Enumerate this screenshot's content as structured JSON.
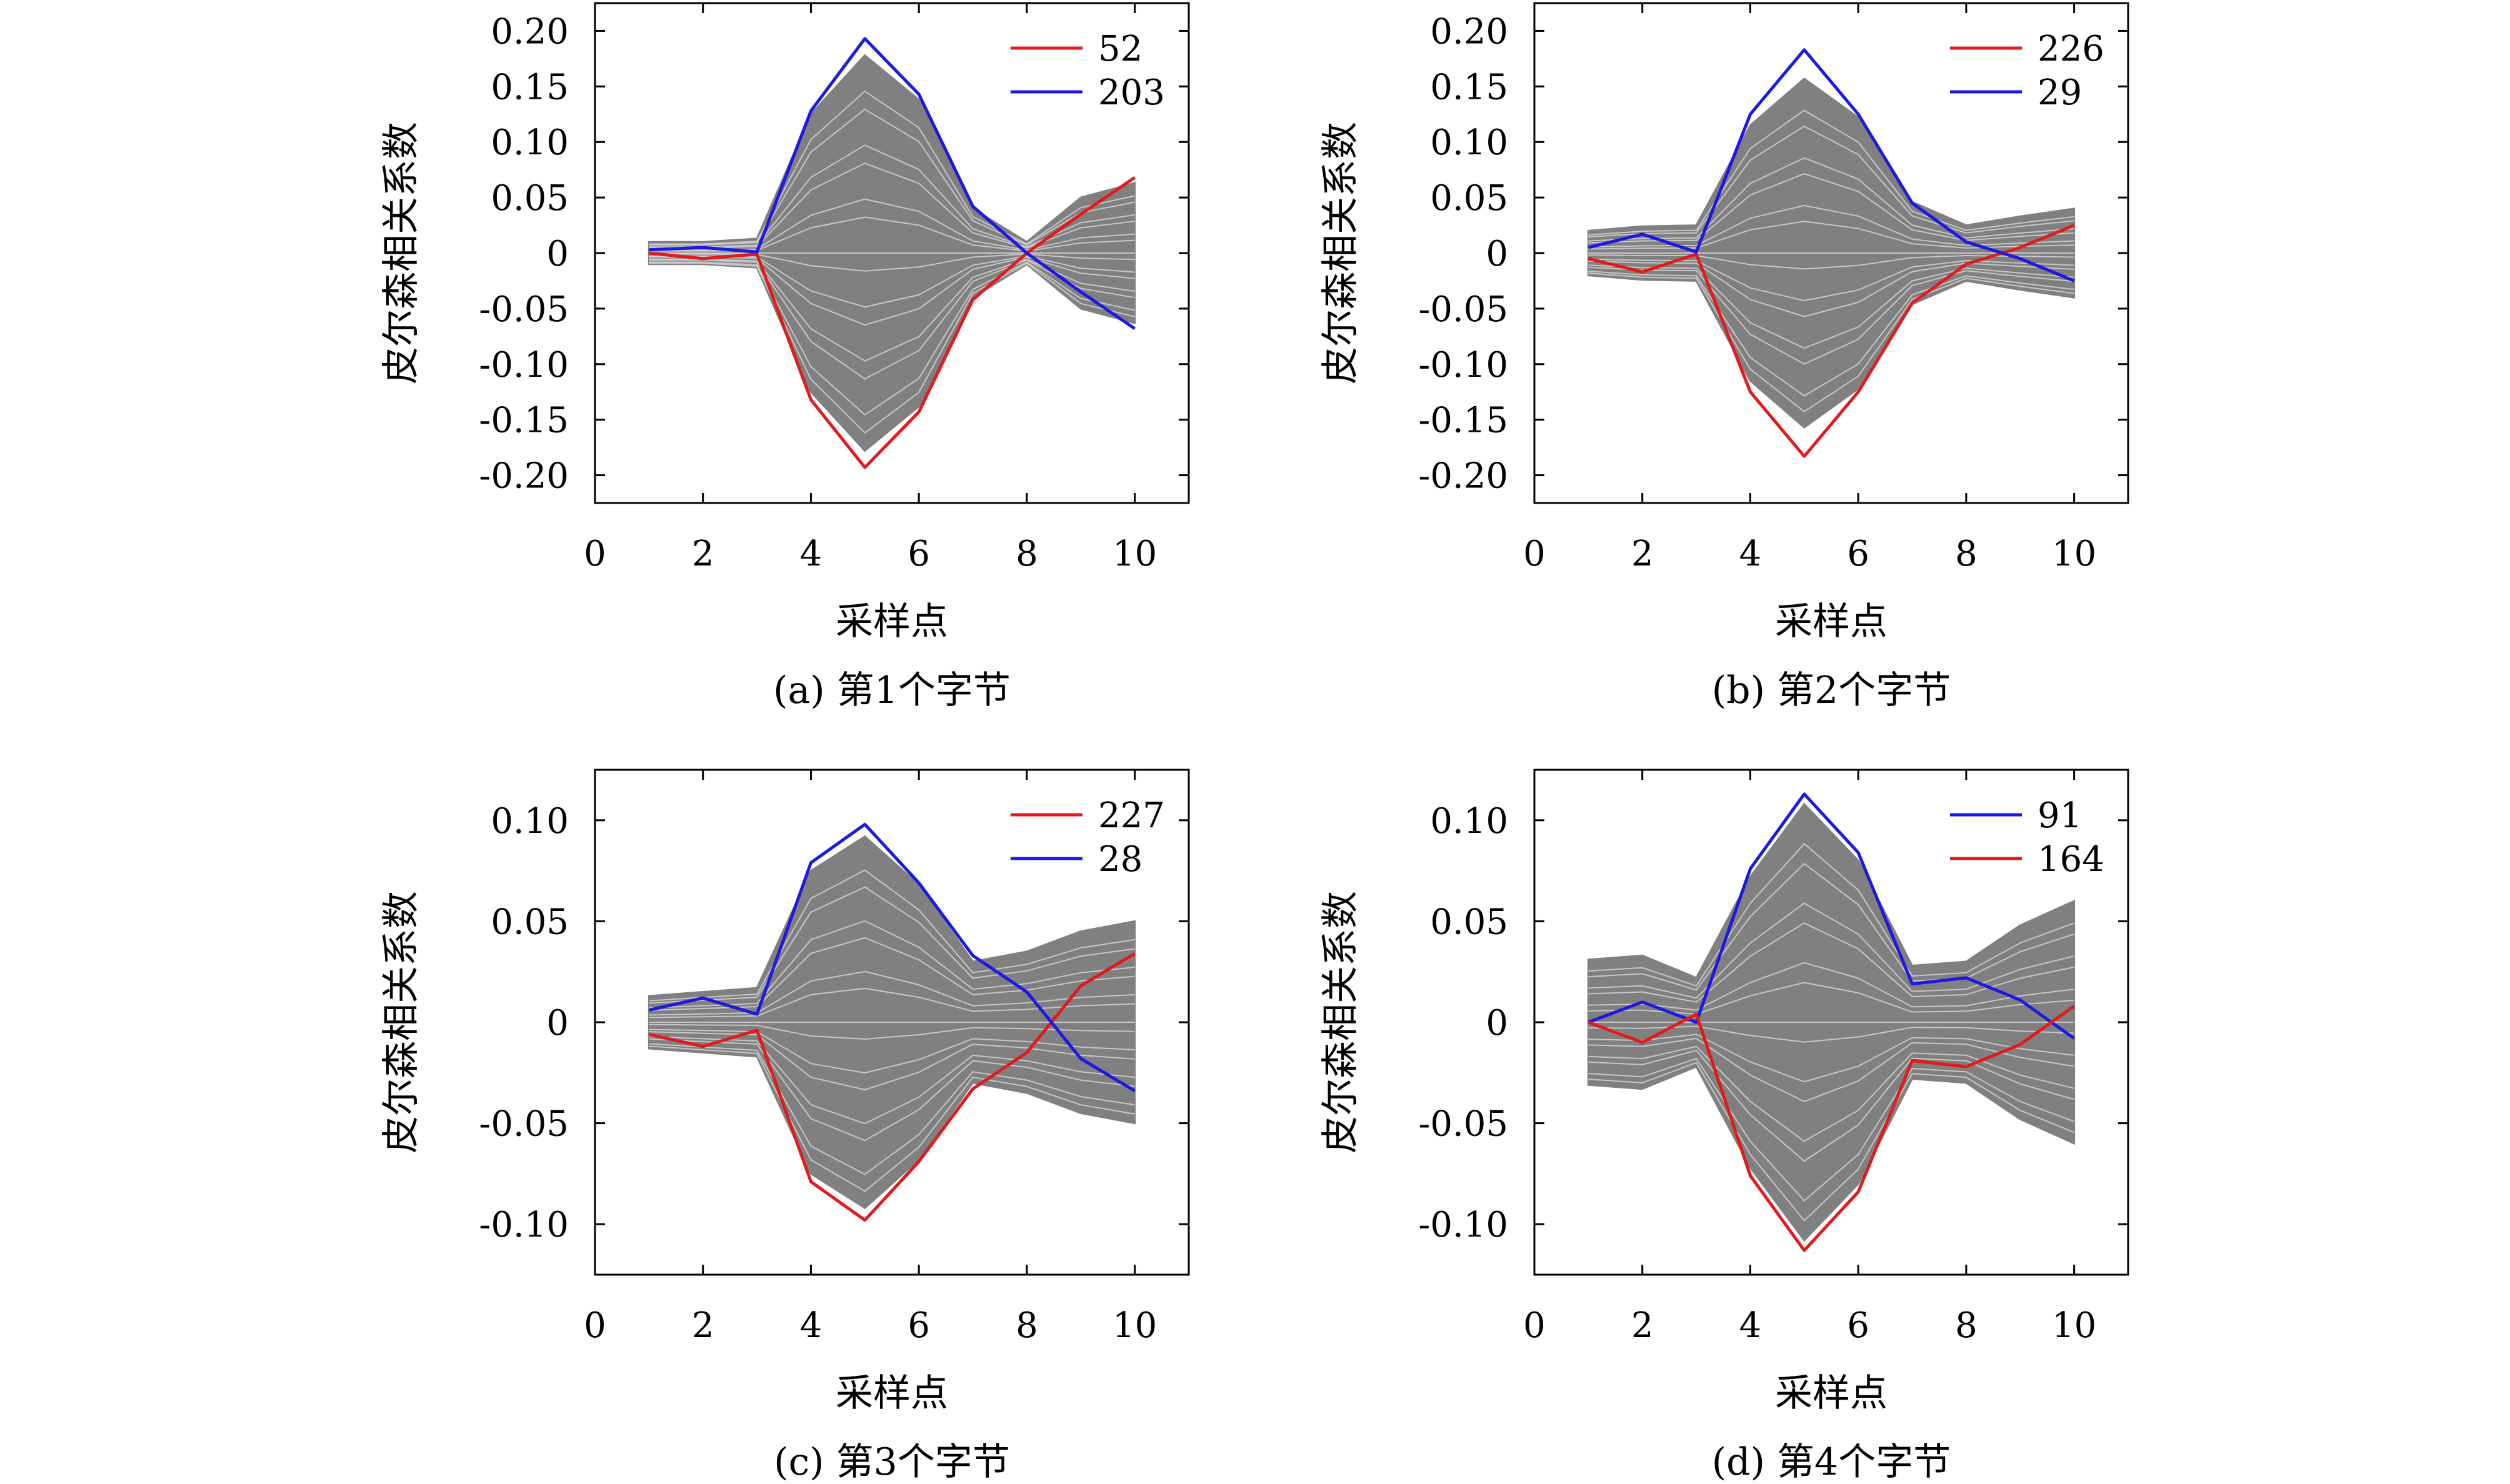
{
  "chart_data": [
    {
      "type": "line",
      "caption": "(a) 第1个字节",
      "xlabel": "采样点",
      "ylabel": "皮尔森相关系数",
      "xlim": [
        0,
        11
      ],
      "ylim": [
        -0.225,
        0.225
      ],
      "xticks": [
        0,
        2,
        4,
        6,
        8,
        10
      ],
      "xtick_labels": [
        "0",
        "2",
        "4",
        "6",
        "8",
        "10"
      ],
      "yticks": [
        -0.2,
        -0.15,
        -0.1,
        -0.05,
        0,
        0.05,
        0.1,
        0.15,
        0.2
      ],
      "ytick_labels": [
        "-0.20",
        "-0.15",
        "-0.10",
        "-0.05",
        "0",
        "0.05",
        "0.10",
        "0.15",
        "0.20"
      ],
      "x": [
        1,
        2,
        3,
        4,
        5,
        6,
        7,
        8,
        9,
        10
      ],
      "background_envelope": {
        "color": "#808080",
        "upper": [
          0.01,
          0.01,
          0.013,
          0.125,
          0.178,
          0.138,
          0.04,
          0.01,
          0.05,
          0.063
        ],
        "lower": [
          -0.01,
          -0.01,
          -0.013,
          -0.125,
          -0.178,
          -0.138,
          -0.04,
          -0.01,
          -0.05,
          -0.063
        ]
      },
      "series": [
        {
          "name": "52",
          "color": "#e31a1c",
          "values": [
            0.0,
            -0.005,
            -0.001,
            -0.132,
            -0.193,
            -0.143,
            -0.042,
            0.0,
            0.035,
            0.068
          ]
        },
        {
          "name": "203",
          "color": "#1a1ae3",
          "values": [
            0.003,
            0.005,
            0.001,
            0.128,
            0.193,
            0.143,
            0.042,
            0.0,
            -0.035,
            -0.068
          ]
        }
      ],
      "legend_position": "top-right"
    },
    {
      "type": "line",
      "caption": "(b) 第2个字节",
      "xlabel": "采样点",
      "ylabel": "皮尔森相关系数",
      "xlim": [
        0,
        11
      ],
      "ylim": [
        -0.225,
        0.225
      ],
      "xticks": [
        0,
        2,
        4,
        6,
        8,
        10
      ],
      "xtick_labels": [
        "0",
        "2",
        "4",
        "6",
        "8",
        "10"
      ],
      "yticks": [
        -0.2,
        -0.15,
        -0.1,
        -0.05,
        0,
        0.05,
        0.1,
        0.15,
        0.2
      ],
      "ytick_labels": [
        "-0.20",
        "-0.15",
        "-0.10",
        "-0.05",
        "0",
        "0.05",
        "0.10",
        "0.15",
        "0.20"
      ],
      "x": [
        1,
        2,
        3,
        4,
        5,
        6,
        7,
        8,
        9,
        10
      ],
      "background_envelope": {
        "color": "#808080",
        "upper": [
          0.02,
          0.024,
          0.025,
          0.115,
          0.157,
          0.122,
          0.046,
          0.025,
          0.033,
          0.04
        ],
        "lower": [
          -0.02,
          -0.024,
          -0.025,
          -0.115,
          -0.157,
          -0.122,
          -0.046,
          -0.025,
          -0.033,
          -0.04
        ]
      },
      "series": [
        {
          "name": "226",
          "color": "#e31a1c",
          "values": [
            -0.005,
            -0.017,
            -0.001,
            -0.125,
            -0.183,
            -0.125,
            -0.045,
            -0.01,
            0.005,
            0.025
          ]
        },
        {
          "name": "29",
          "color": "#1a1ae3",
          "values": [
            0.005,
            0.017,
            0.001,
            0.125,
            0.183,
            0.125,
            0.045,
            0.01,
            -0.005,
            -0.025
          ]
        }
      ],
      "legend_position": "top-right"
    },
    {
      "type": "line",
      "caption": "(c) 第3个字节",
      "xlabel": "采样点",
      "ylabel": "皮尔森相关系数",
      "xlim": [
        0,
        11
      ],
      "ylim": [
        -0.125,
        0.125
      ],
      "xticks": [
        0,
        2,
        4,
        6,
        8,
        10
      ],
      "xtick_labels": [
        "0",
        "2",
        "4",
        "6",
        "8",
        "10"
      ],
      "yticks": [
        -0.1,
        -0.05,
        0,
        0.05,
        0.1
      ],
      "ytick_labels": [
        "-0.10",
        "-0.05",
        "0",
        "0.05",
        "0.10"
      ],
      "x": [
        1,
        2,
        3,
        4,
        5,
        6,
        7,
        8,
        9,
        10
      ],
      "background_envelope": {
        "color": "#808080",
        "upper": [
          0.013,
          0.015,
          0.017,
          0.075,
          0.092,
          0.068,
          0.03,
          0.035,
          0.045,
          0.05
        ],
        "lower": [
          -0.013,
          -0.015,
          -0.017,
          -0.075,
          -0.092,
          -0.068,
          -0.03,
          -0.035,
          -0.045,
          -0.05
        ]
      },
      "series": [
        {
          "name": "227",
          "color": "#e31a1c",
          "values": [
            -0.006,
            -0.012,
            -0.004,
            -0.079,
            -0.098,
            -0.069,
            -0.033,
            -0.015,
            0.018,
            0.034
          ]
        },
        {
          "name": "28",
          "color": "#1a1ae3",
          "values": [
            0.006,
            0.012,
            0.004,
            0.079,
            0.098,
            0.069,
            0.033,
            0.015,
            -0.018,
            -0.034
          ]
        }
      ],
      "legend_position": "top-right"
    },
    {
      "type": "line",
      "caption": "(d) 第4个字节",
      "xlabel": "采样点",
      "ylabel": "皮尔森相关系数",
      "xlim": [
        0,
        11
      ],
      "ylim": [
        -0.125,
        0.125
      ],
      "xticks": [
        0,
        2,
        4,
        6,
        8,
        10
      ],
      "xtick_labels": [
        "0",
        "2",
        "4",
        "6",
        "8",
        "10"
      ],
      "yticks": [
        -0.1,
        -0.05,
        0,
        0.05,
        0.1
      ],
      "ytick_labels": [
        "-0.10",
        "-0.05",
        "0",
        "0.05",
        "0.10"
      ],
      "x": [
        1,
        2,
        3,
        4,
        5,
        6,
        7,
        8,
        9,
        10
      ],
      "background_envelope": {
        "color": "#808080",
        "upper": [
          0.031,
          0.033,
          0.022,
          0.072,
          0.108,
          0.08,
          0.028,
          0.03,
          0.048,
          0.06
        ],
        "lower": [
          -0.031,
          -0.033,
          -0.022,
          -0.072,
          -0.108,
          -0.08,
          -0.028,
          -0.03,
          -0.048,
          -0.06
        ]
      },
      "series": [
        {
          "name": "91",
          "color": "#1a1ae3",
          "values": [
            0.0,
            0.01,
            0.0,
            0.076,
            0.113,
            0.084,
            0.019,
            0.022,
            0.011,
            -0.008
          ]
        },
        {
          "name": "164",
          "color": "#e31a1c",
          "values": [
            0.0,
            -0.01,
            0.004,
            -0.076,
            -0.113,
            -0.084,
            -0.019,
            -0.022,
            -0.011,
            0.008
          ]
        }
      ],
      "legend_position": "top-right"
    }
  ]
}
